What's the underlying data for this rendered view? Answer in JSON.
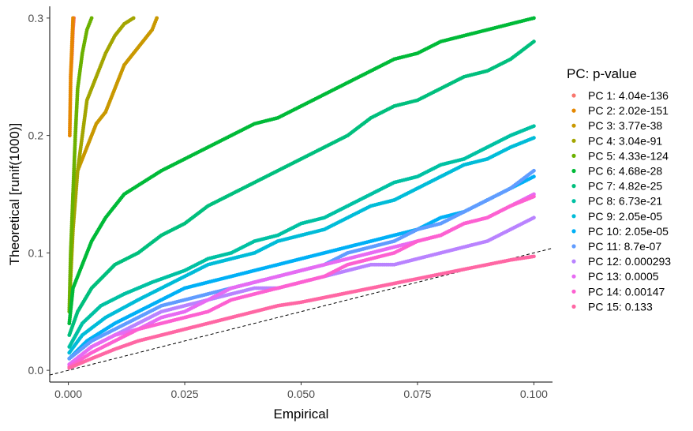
{
  "chart_data": {
    "type": "scatter",
    "xlabel": "Empirical",
    "ylabel": "Theoretical [runif(1000)]",
    "xlim": [
      -0.004,
      0.104
    ],
    "ylim": [
      -0.01,
      0.31
    ],
    "x_ticks": [
      0.0,
      0.025,
      0.05,
      0.075,
      0.1
    ],
    "x_tick_labels": [
      "0.000",
      "0.025",
      "0.050",
      "0.075",
      "0.100"
    ],
    "y_ticks": [
      0.0,
      0.1,
      0.2,
      0.3
    ],
    "y_tick_labels": [
      "0.0",
      "0.1",
      "0.2",
      "0.3"
    ],
    "grid": false,
    "reference_line": {
      "style": "dashed",
      "color": "#000000",
      "x": [
        -0.004,
        0.104
      ],
      "y": [
        -0.004,
        0.104
      ]
    },
    "legend": {
      "title": "PC: p-value",
      "position": "right"
    },
    "series": [
      {
        "name": "PC 1: 4.04e-136",
        "color": "#F8766D",
        "points": [
          [
            0.0005,
            0.25
          ],
          [
            0.0008,
            0.27
          ],
          [
            0.001,
            0.29
          ],
          [
            0.0012,
            0.3
          ]
        ]
      },
      {
        "name": "PC 2: 2.02e-151",
        "color": "#E58700",
        "points": [
          [
            0.0003,
            0.2
          ],
          [
            0.0005,
            0.25
          ],
          [
            0.0008,
            0.28
          ],
          [
            0.001,
            0.3
          ]
        ]
      },
      {
        "name": "PC 3: 3.77e-38",
        "color": "#C99800",
        "points": [
          [
            0.0003,
            0.06
          ],
          [
            0.0006,
            0.09
          ],
          [
            0.0008,
            0.12
          ],
          [
            0.001,
            0.15
          ],
          [
            0.002,
            0.17
          ],
          [
            0.004,
            0.19
          ],
          [
            0.006,
            0.21
          ],
          [
            0.008,
            0.22
          ],
          [
            0.01,
            0.24
          ],
          [
            0.012,
            0.26
          ],
          [
            0.014,
            0.27
          ],
          [
            0.016,
            0.28
          ],
          [
            0.018,
            0.29
          ],
          [
            0.019,
            0.3
          ]
        ]
      },
      {
        "name": "PC 4: 3.04e-91",
        "color": "#A3A500",
        "points": [
          [
            0.0005,
            0.08
          ],
          [
            0.001,
            0.12
          ],
          [
            0.002,
            0.17
          ],
          [
            0.003,
            0.2
          ],
          [
            0.004,
            0.23
          ],
          [
            0.006,
            0.25
          ],
          [
            0.007,
            0.26
          ],
          [
            0.008,
            0.27
          ],
          [
            0.01,
            0.285
          ],
          [
            0.012,
            0.295
          ],
          [
            0.014,
            0.3
          ]
        ]
      },
      {
        "name": "PC 5: 4.33e-124",
        "color": "#6BB100",
        "points": [
          [
            0.0002,
            0.05
          ],
          [
            0.0005,
            0.1
          ],
          [
            0.001,
            0.15
          ],
          [
            0.0015,
            0.2
          ],
          [
            0.002,
            0.24
          ],
          [
            0.003,
            0.27
          ],
          [
            0.004,
            0.29
          ],
          [
            0.005,
            0.3
          ]
        ]
      },
      {
        "name": "PC 6: 4.68e-28",
        "color": "#00BA38",
        "points": [
          [
            0.0002,
            0.04
          ],
          [
            0.001,
            0.07
          ],
          [
            0.003,
            0.09
          ],
          [
            0.005,
            0.11
          ],
          [
            0.008,
            0.13
          ],
          [
            0.012,
            0.15
          ],
          [
            0.016,
            0.16
          ],
          [
            0.02,
            0.17
          ],
          [
            0.025,
            0.18
          ],
          [
            0.03,
            0.19
          ],
          [
            0.035,
            0.2
          ],
          [
            0.04,
            0.21
          ],
          [
            0.045,
            0.215
          ],
          [
            0.05,
            0.225
          ],
          [
            0.055,
            0.235
          ],
          [
            0.06,
            0.245
          ],
          [
            0.065,
            0.255
          ],
          [
            0.07,
            0.265
          ],
          [
            0.075,
            0.27
          ],
          [
            0.08,
            0.28
          ],
          [
            0.085,
            0.285
          ],
          [
            0.09,
            0.29
          ],
          [
            0.095,
            0.295
          ],
          [
            0.1,
            0.3
          ]
        ]
      },
      {
        "name": "PC 7: 4.82e-25",
        "color": "#00BF7D",
        "points": [
          [
            0.0002,
            0.03
          ],
          [
            0.002,
            0.05
          ],
          [
            0.005,
            0.07
          ],
          [
            0.01,
            0.09
          ],
          [
            0.015,
            0.1
          ],
          [
            0.02,
            0.115
          ],
          [
            0.025,
            0.125
          ],
          [
            0.03,
            0.14
          ],
          [
            0.035,
            0.15
          ],
          [
            0.04,
            0.16
          ],
          [
            0.045,
            0.17
          ],
          [
            0.05,
            0.18
          ],
          [
            0.055,
            0.19
          ],
          [
            0.06,
            0.2
          ],
          [
            0.065,
            0.215
          ],
          [
            0.07,
            0.225
          ],
          [
            0.075,
            0.23
          ],
          [
            0.08,
            0.24
          ],
          [
            0.085,
            0.25
          ],
          [
            0.09,
            0.255
          ],
          [
            0.095,
            0.265
          ],
          [
            0.1,
            0.28
          ]
        ]
      },
      {
        "name": "PC 8: 6.73e-21",
        "color": "#00C1A3",
        "points": [
          [
            0.0002,
            0.02
          ],
          [
            0.003,
            0.04
          ],
          [
            0.007,
            0.055
          ],
          [
            0.012,
            0.065
          ],
          [
            0.018,
            0.075
          ],
          [
            0.025,
            0.085
          ],
          [
            0.03,
            0.095
          ],
          [
            0.035,
            0.1
          ],
          [
            0.04,
            0.11
          ],
          [
            0.045,
            0.115
          ],
          [
            0.05,
            0.125
          ],
          [
            0.055,
            0.13
          ],
          [
            0.06,
            0.14
          ],
          [
            0.065,
            0.15
          ],
          [
            0.07,
            0.16
          ],
          [
            0.075,
            0.165
          ],
          [
            0.08,
            0.175
          ],
          [
            0.085,
            0.18
          ],
          [
            0.09,
            0.19
          ],
          [
            0.095,
            0.2
          ],
          [
            0.1,
            0.208
          ]
        ]
      },
      {
        "name": "PC 9: 2.05e-05",
        "color": "#00BCD8",
        "points": [
          [
            0.0002,
            0.015
          ],
          [
            0.003,
            0.03
          ],
          [
            0.008,
            0.045
          ],
          [
            0.015,
            0.06
          ],
          [
            0.02,
            0.07
          ],
          [
            0.025,
            0.08
          ],
          [
            0.03,
            0.09
          ],
          [
            0.035,
            0.095
          ],
          [
            0.04,
            0.1
          ],
          [
            0.045,
            0.11
          ],
          [
            0.05,
            0.115
          ],
          [
            0.055,
            0.12
          ],
          [
            0.06,
            0.13
          ],
          [
            0.065,
            0.14
          ],
          [
            0.07,
            0.145
          ],
          [
            0.075,
            0.155
          ],
          [
            0.08,
            0.165
          ],
          [
            0.085,
            0.175
          ],
          [
            0.09,
            0.18
          ],
          [
            0.095,
            0.19
          ],
          [
            0.1,
            0.198
          ]
        ]
      },
      {
        "name": "PC 10: 2.05e-05",
        "color": "#00B0F6",
        "points": [
          [
            0.0002,
            0.01
          ],
          [
            0.004,
            0.025
          ],
          [
            0.01,
            0.04
          ],
          [
            0.015,
            0.05
          ],
          [
            0.02,
            0.06
          ],
          [
            0.025,
            0.07
          ],
          [
            0.03,
            0.075
          ],
          [
            0.035,
            0.08
          ],
          [
            0.04,
            0.085
          ],
          [
            0.045,
            0.09
          ],
          [
            0.05,
            0.095
          ],
          [
            0.055,
            0.1
          ],
          [
            0.06,
            0.105
          ],
          [
            0.065,
            0.11
          ],
          [
            0.07,
            0.115
          ],
          [
            0.075,
            0.12
          ],
          [
            0.08,
            0.13
          ],
          [
            0.085,
            0.135
          ],
          [
            0.09,
            0.145
          ],
          [
            0.095,
            0.155
          ],
          [
            0.1,
            0.165
          ]
        ]
      },
      {
        "name": "PC 11: 8.7e-07",
        "color": "#619CFF",
        "points": [
          [
            0.0002,
            0.01
          ],
          [
            0.005,
            0.025
          ],
          [
            0.01,
            0.035
          ],
          [
            0.015,
            0.045
          ],
          [
            0.02,
            0.055
          ],
          [
            0.025,
            0.06
          ],
          [
            0.03,
            0.065
          ],
          [
            0.035,
            0.07
          ],
          [
            0.04,
            0.075
          ],
          [
            0.045,
            0.08
          ],
          [
            0.05,
            0.085
          ],
          [
            0.055,
            0.09
          ],
          [
            0.06,
            0.1
          ],
          [
            0.065,
            0.105
          ],
          [
            0.07,
            0.11
          ],
          [
            0.075,
            0.12
          ],
          [
            0.08,
            0.125
          ],
          [
            0.085,
            0.135
          ],
          [
            0.09,
            0.145
          ],
          [
            0.095,
            0.155
          ],
          [
            0.1,
            0.17
          ]
        ]
      },
      {
        "name": "PC 12: 0.000293",
        "color": "#B983FF",
        "points": [
          [
            0.0002,
            0.005
          ],
          [
            0.005,
            0.02
          ],
          [
            0.01,
            0.03
          ],
          [
            0.015,
            0.04
          ],
          [
            0.02,
            0.05
          ],
          [
            0.025,
            0.055
          ],
          [
            0.03,
            0.06
          ],
          [
            0.035,
            0.065
          ],
          [
            0.04,
            0.07
          ],
          [
            0.045,
            0.07
          ],
          [
            0.05,
            0.075
          ],
          [
            0.055,
            0.08
          ],
          [
            0.06,
            0.085
          ],
          [
            0.065,
            0.09
          ],
          [
            0.07,
            0.09
          ],
          [
            0.075,
            0.095
          ],
          [
            0.08,
            0.1
          ],
          [
            0.085,
            0.105
          ],
          [
            0.09,
            0.11
          ],
          [
            0.095,
            0.12
          ],
          [
            0.1,
            0.13
          ]
        ]
      },
      {
        "name": "PC 13: 0.0005",
        "color": "#E76BF3",
        "points": [
          [
            0.0002,
            0.005
          ],
          [
            0.005,
            0.02
          ],
          [
            0.01,
            0.03
          ],
          [
            0.015,
            0.035
          ],
          [
            0.02,
            0.045
          ],
          [
            0.025,
            0.05
          ],
          [
            0.03,
            0.06
          ],
          [
            0.035,
            0.07
          ],
          [
            0.04,
            0.075
          ],
          [
            0.045,
            0.08
          ],
          [
            0.05,
            0.085
          ],
          [
            0.055,
            0.09
          ],
          [
            0.06,
            0.095
          ],
          [
            0.065,
            0.1
          ],
          [
            0.07,
            0.105
          ],
          [
            0.075,
            0.11
          ],
          [
            0.08,
            0.115
          ],
          [
            0.085,
            0.125
          ],
          [
            0.09,
            0.13
          ],
          [
            0.095,
            0.14
          ],
          [
            0.1,
            0.15
          ]
        ]
      },
      {
        "name": "PC 14: 0.00147",
        "color": "#FD61D1",
        "points": [
          [
            0.0002,
            0.003
          ],
          [
            0.005,
            0.015
          ],
          [
            0.01,
            0.025
          ],
          [
            0.015,
            0.035
          ],
          [
            0.02,
            0.04
          ],
          [
            0.025,
            0.045
          ],
          [
            0.03,
            0.05
          ],
          [
            0.035,
            0.06
          ],
          [
            0.04,
            0.065
          ],
          [
            0.045,
            0.07
          ],
          [
            0.05,
            0.075
          ],
          [
            0.055,
            0.08
          ],
          [
            0.06,
            0.09
          ],
          [
            0.065,
            0.095
          ],
          [
            0.07,
            0.1
          ],
          [
            0.075,
            0.11
          ],
          [
            0.08,
            0.115
          ],
          [
            0.085,
            0.125
          ],
          [
            0.09,
            0.13
          ],
          [
            0.095,
            0.14
          ],
          [
            0.1,
            0.148
          ]
        ]
      },
      {
        "name": "PC 15: 0.133",
        "color": "#FF67A4",
        "points": [
          [
            0.0002,
            0.002
          ],
          [
            0.005,
            0.01
          ],
          [
            0.01,
            0.018
          ],
          [
            0.015,
            0.025
          ],
          [
            0.02,
            0.03
          ],
          [
            0.025,
            0.035
          ],
          [
            0.03,
            0.04
          ],
          [
            0.035,
            0.045
          ],
          [
            0.04,
            0.05
          ],
          [
            0.045,
            0.055
          ],
          [
            0.05,
            0.058
          ],
          [
            0.055,
            0.062
          ],
          [
            0.06,
            0.066
          ],
          [
            0.065,
            0.07
          ],
          [
            0.07,
            0.074
          ],
          [
            0.075,
            0.078
          ],
          [
            0.08,
            0.082
          ],
          [
            0.085,
            0.086
          ],
          [
            0.09,
            0.09
          ],
          [
            0.095,
            0.094
          ],
          [
            0.1,
            0.097
          ]
        ]
      }
    ]
  }
}
